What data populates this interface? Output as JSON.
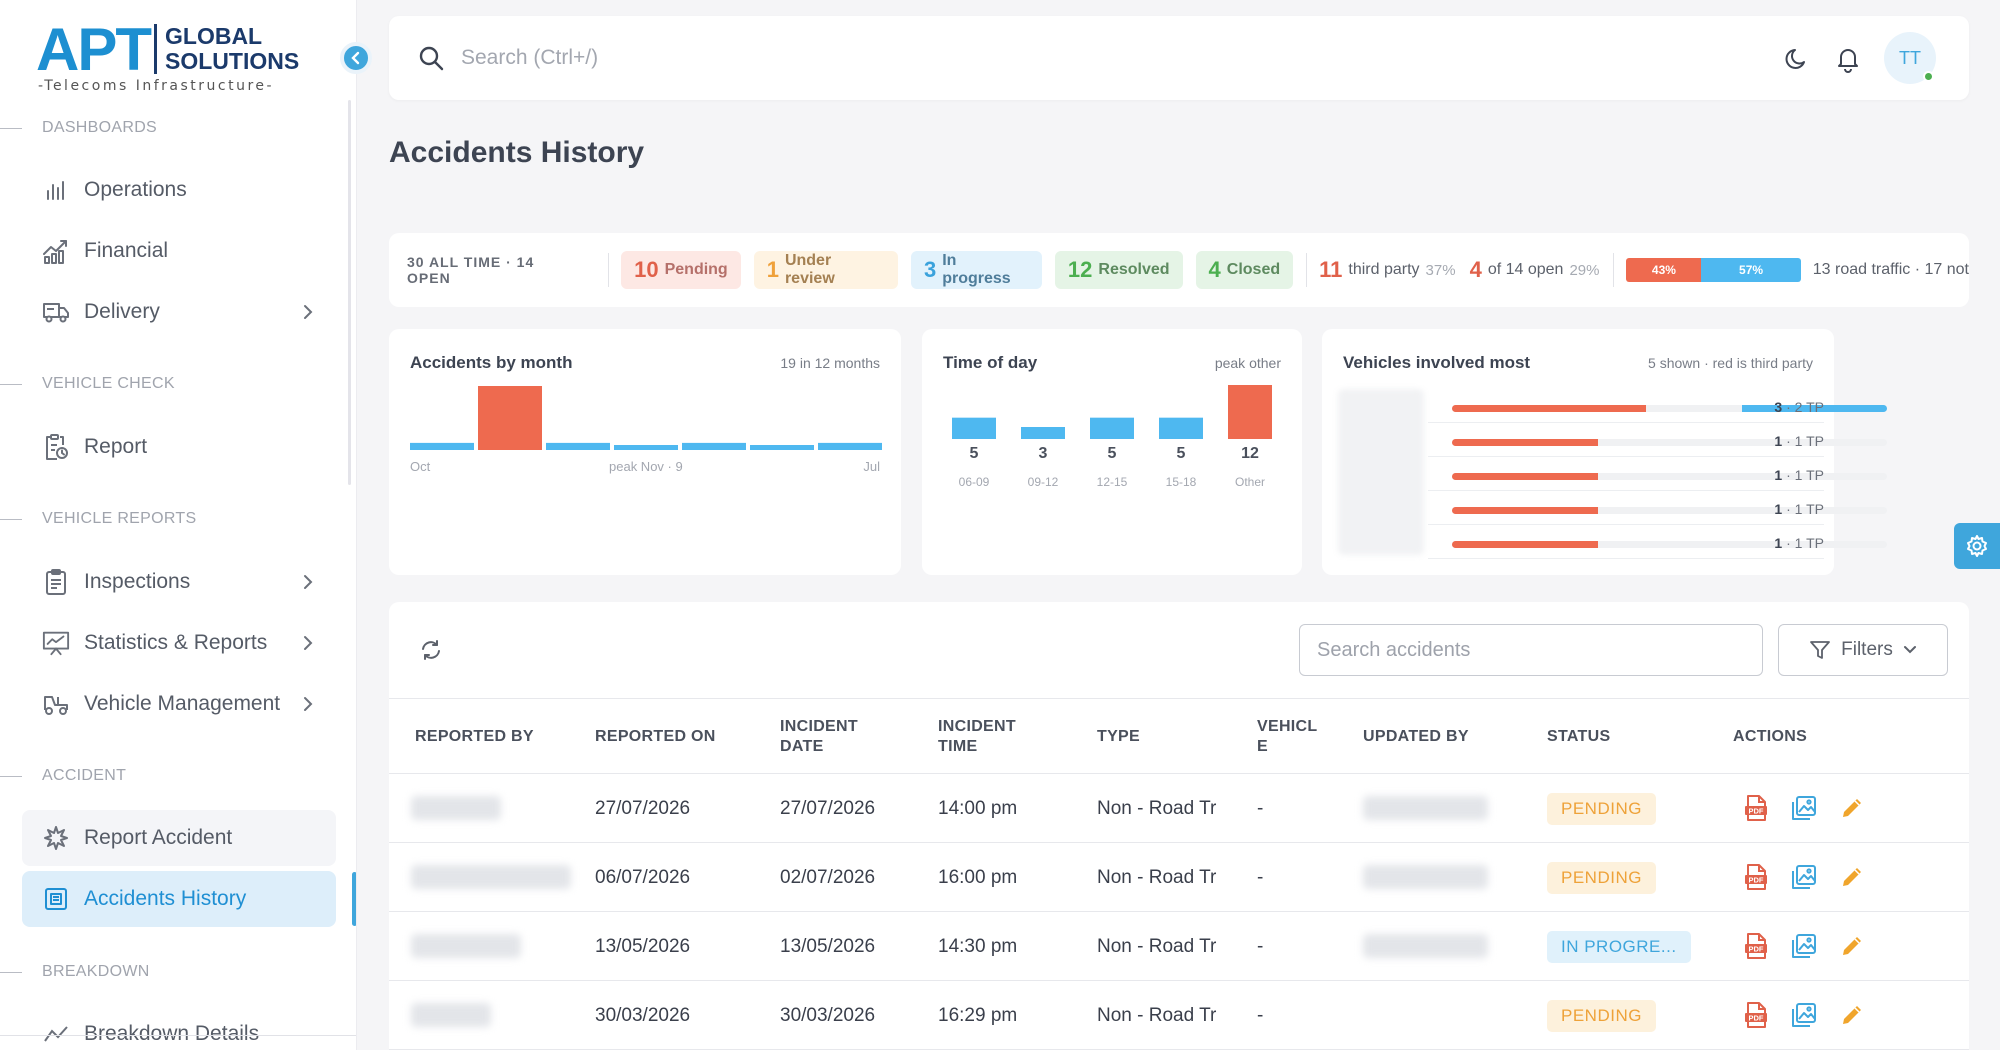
{
  "brand": {
    "logo_main": "APT",
    "logo_line1": "GLOBAL",
    "logo_line2": "SOLUTIONS",
    "logo_tagline": "-Telecoms Infrastructure-"
  },
  "sidebar": {
    "sections": [
      {
        "label": "DASHBOARDS"
      },
      {
        "label": "VEHICLE CHECK"
      },
      {
        "label": "VEHICLE REPORTS"
      },
      {
        "label": "ACCIDENT"
      },
      {
        "label": "BREAKDOWN"
      }
    ],
    "items": [
      {
        "label": "Operations",
        "icon": "bar-chart-icon"
      },
      {
        "label": "Financial",
        "icon": "growth-chart-icon"
      },
      {
        "label": "Delivery",
        "icon": "truck-icon"
      },
      {
        "label": "Report",
        "icon": "clipboard-clock-icon"
      },
      {
        "label": "Inspections",
        "icon": "clipboard-list-icon"
      },
      {
        "label": "Statistics & Reports",
        "icon": "presentation-chart-icon"
      },
      {
        "label": "Vehicle Management",
        "icon": "vehicle-icon"
      },
      {
        "label": "Report Accident",
        "icon": "crash-icon"
      },
      {
        "label": "Accidents History",
        "icon": "history-icon"
      },
      {
        "label": "Breakdown Details",
        "icon": "breakdown-icon"
      }
    ]
  },
  "topbar": {
    "search_placeholder": "Search (Ctrl+/)",
    "avatar_initials": "TT"
  },
  "page": {
    "title": "Accidents History"
  },
  "summary": {
    "all_time": "30 ALL TIME · 14 OPEN",
    "pills": [
      {
        "count": "10",
        "label": "Pending"
      },
      {
        "count": "1",
        "label": "Under review"
      },
      {
        "count": "3",
        "label": "In progress"
      },
      {
        "count": "12",
        "label": "Resolved"
      },
      {
        "count": "4",
        "label": "Closed"
      }
    ],
    "third_party": {
      "count": "11",
      "label": "third party",
      "pct": "37%"
    },
    "open_tp": {
      "count": "4",
      "label": "of 14 open",
      "pct": "29%"
    },
    "split": {
      "a": "43%",
      "b": "57%",
      "a_frac": 0.43,
      "b_frac": 0.57
    },
    "road_text": "13 road traffic · 17 not"
  },
  "cards": {
    "month": {
      "title": "Accidents by month",
      "subtitle": "19 in 12 months",
      "axis_left": "Oct",
      "axis_mid": "peak Nov · 9",
      "axis_right": "Jul"
    },
    "tod": {
      "title": "Time of day",
      "subtitle": "peak other"
    },
    "vehicles": {
      "title": "Vehicles involved most",
      "subtitle": "5 shown · red is third party"
    }
  },
  "chart_data": [
    {
      "type": "bar",
      "title": "Accidents by month",
      "values": [
        1,
        9,
        1,
        0.5,
        1,
        0.5,
        1
      ],
      "highlight_index": 1,
      "colors": {
        "normal": "#4eb8f0",
        "peak": "#ee6a4f"
      }
    },
    {
      "type": "bar",
      "title": "Time of day",
      "categories": [
        "06-09",
        "09-12",
        "12-15",
        "15-18",
        "Other"
      ],
      "values": [
        5,
        3,
        5,
        5,
        12
      ],
      "value_labels": [
        "5",
        "3",
        "5",
        "5",
        "12"
      ],
      "highlight_index": 4
    },
    {
      "type": "bar",
      "title": "Vehicles involved most",
      "series": [
        {
          "name": "third party",
          "values": [
            2,
            1,
            1,
            1,
            1
          ]
        },
        {
          "values": [
            1,
            0,
            0,
            0,
            0
          ]
        }
      ],
      "totals": [
        3,
        1,
        1,
        1,
        1
      ],
      "value_labels": [
        {
          "total": "3",
          "tp": "· 2 TP"
        },
        {
          "total": "1",
          "tp": "· 1 TP"
        },
        {
          "total": "1",
          "tp": "· 1 TP"
        },
        {
          "total": "1",
          "tp": "· 1 TP"
        },
        {
          "total": "1",
          "tp": "· 1 TP"
        }
      ]
    }
  ],
  "table": {
    "search_placeholder": "Search accidents",
    "filters_label": "Filters",
    "columns": [
      "REPORTED BY",
      "REPORTED ON",
      "INCIDENT DATE",
      "INCIDENT TIME",
      "TYPE",
      "VEHICLE",
      "UPDATED BY",
      "STATUS",
      "ACTIONS"
    ],
    "columns_display": [
      "REPORTED BY",
      "REPORTED ON",
      "INCIDENT\nDATE",
      "INCIDENT\nTIME",
      "TYPE",
      "VEHICL\nE",
      "UPDATED BY",
      "STATUS",
      "ACTIONS"
    ],
    "rows": [
      {
        "reported_on": "27/07/2026",
        "incident_date": "27/07/2026",
        "incident_time": "14:00 pm",
        "type": "Non - Road Tr",
        "vehicle": "-",
        "status": "PENDING",
        "status_kind": "pending",
        "has_updater": true
      },
      {
        "reported_on": "06/07/2026",
        "incident_date": "02/07/2026",
        "incident_time": "16:00 pm",
        "type": "Non - Road Tr",
        "vehicle": "-",
        "status": "PENDING",
        "status_kind": "pending",
        "has_updater": true
      },
      {
        "reported_on": "13/05/2026",
        "incident_date": "13/05/2026",
        "incident_time": "14:30 pm",
        "type": "Non - Road Tr",
        "vehicle": "-",
        "status": "IN PROGRE...",
        "status_kind": "prog",
        "has_updater": true
      },
      {
        "reported_on": "30/03/2026",
        "incident_date": "30/03/2026",
        "incident_time": "16:29 pm",
        "type": "Non - Road Tr",
        "vehicle": "-",
        "status": "PENDING",
        "status_kind": "pending",
        "has_updater": false
      }
    ]
  },
  "colors": {
    "accent": "#3fa6dc",
    "danger": "#ee6a4f",
    "warning": "#eea239",
    "success": "#4caf50"
  }
}
